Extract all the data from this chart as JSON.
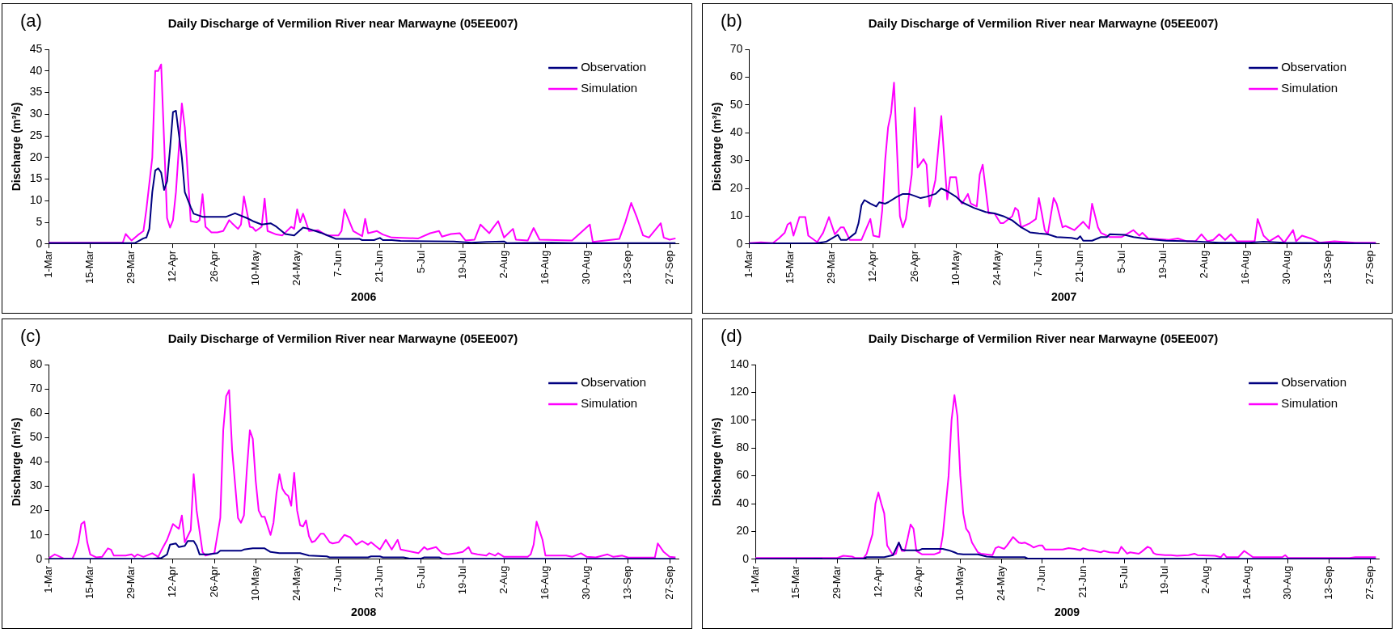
{
  "chart_data": [
    {
      "type": "line",
      "title": "Daily Discharge of Vermilion River near Marwayne (05EE007)",
      "xlabel": "2006",
      "ylabel": "Discharge (m³/s)",
      "annotations": [
        "(a)"
      ],
      "legend": "top right",
      "xlim": [
        "2006-03-01",
        "2006-09-30"
      ],
      "ylim": [
        0,
        45
      ],
      "yticks": [
        0,
        5,
        10,
        15,
        20,
        25,
        30,
        35,
        40,
        45
      ],
      "xticks": [
        {
          "value": "2006-03-01",
          "label": "1-Mar"
        },
        {
          "value": "2006-03-15",
          "label": "15-Mar"
        },
        {
          "value": "2006-03-29",
          "label": "29-Mar"
        },
        {
          "value": "2006-04-12",
          "label": "12-Apr"
        },
        {
          "value": "2006-04-26",
          "label": "26-Apr"
        },
        {
          "value": "2006-05-10",
          "label": "10-May"
        },
        {
          "value": "2006-05-24",
          "label": "24-May"
        },
        {
          "value": "2006-06-07",
          "label": "7-Jun"
        },
        {
          "value": "2006-06-21",
          "label": "21-Jun"
        },
        {
          "value": "2006-07-05",
          "label": "5-Jul"
        },
        {
          "value": "2006-07-19",
          "label": "19-Jul"
        },
        {
          "value": "2006-08-02",
          "label": "2-Aug"
        },
        {
          "value": "2006-08-16",
          "label": "16-Aug"
        },
        {
          "value": "2006-08-30",
          "label": "30-Aug"
        },
        {
          "value": "2006-09-13",
          "label": "13-Sep"
        },
        {
          "value": "2006-09-27",
          "label": "27-Sep"
        }
      ],
      "series": [
        {
          "name": "Observation",
          "color": "#000080",
          "x": [
            "2006-03-01",
            "2006-03-30",
            "2006-04-02",
            "2006-04-03",
            "2006-04-04",
            "2006-04-05",
            "2006-04-06",
            "2006-04-07",
            "2006-04-08",
            "2006-04-09",
            "2006-04-10",
            "2006-04-11",
            "2006-04-12",
            "2006-04-13",
            "2006-04-15",
            "2006-04-16",
            "2006-04-18",
            "2006-04-19",
            "2006-04-22",
            "2006-04-30",
            "2006-05-03",
            "2006-05-07",
            "2006-05-09",
            "2006-05-12",
            "2006-05-15",
            "2006-05-17",
            "2006-05-20",
            "2006-05-23",
            "2006-05-26",
            "2006-05-28",
            "2006-06-01",
            "2006-06-04",
            "2006-06-06",
            "2006-06-14",
            "2006-06-15",
            "2006-06-19",
            "2006-06-21",
            "2006-06-22",
            "2006-06-25",
            "2006-06-28",
            "2006-07-16",
            "2006-07-22",
            "2006-07-27",
            "2006-08-02",
            "2006-08-03",
            "2006-08-18",
            "2006-08-25",
            "2006-09-29"
          ],
          "values": [
            0.2,
            0.2,
            1.3,
            1.5,
            3.5,
            12,
            17,
            17.5,
            16.5,
            12.5,
            14.5,
            22,
            30.5,
            30.8,
            20,
            12,
            8.5,
            7,
            6.3,
            6.3,
            7.1,
            6,
            5.3,
            4.5,
            4.8,
            4,
            2.3,
            2,
            3.8,
            3.5,
            2.6,
            1.8,
            1.2,
            1.2,
            0.9,
            0.9,
            1.4,
            0.9,
            0.9,
            0.7,
            0.6,
            0.3,
            0.5,
            0.6,
            0.2,
            0.3,
            0.2,
            0.2
          ]
        },
        {
          "name": "Simulation",
          "color": "#ff00ff",
          "x": [
            "2006-03-01",
            "2006-03-26",
            "2006-03-27",
            "2006-03-29",
            "2006-03-31",
            "2006-04-02",
            "2006-04-03",
            "2006-04-05",
            "2006-04-06",
            "2006-04-07",
            "2006-04-08",
            "2006-04-10",
            "2006-04-11",
            "2006-04-12",
            "2006-04-13",
            "2006-04-15",
            "2006-04-16",
            "2006-04-18",
            "2006-04-20",
            "2006-04-21",
            "2006-04-22",
            "2006-04-23",
            "2006-04-25",
            "2006-04-27",
            "2006-04-29",
            "2006-05-01",
            "2006-05-02",
            "2006-05-04",
            "2006-05-05",
            "2006-05-06",
            "2006-05-08",
            "2006-05-09",
            "2006-05-10",
            "2006-05-12",
            "2006-05-13",
            "2006-05-14",
            "2006-05-17",
            "2006-05-19",
            "2006-05-22",
            "2006-05-23",
            "2006-05-24",
            "2006-05-25",
            "2006-05-26",
            "2006-05-28",
            "2006-05-31",
            "2006-06-03",
            "2006-06-07",
            "2006-06-08",
            "2006-06-09",
            "2006-06-12",
            "2006-06-15",
            "2006-06-16",
            "2006-06-17",
            "2006-06-20",
            "2006-06-22",
            "2006-06-25",
            "2006-07-04",
            "2006-07-08",
            "2006-07-11",
            "2006-07-12",
            "2006-07-15",
            "2006-07-18",
            "2006-07-20",
            "2006-07-23",
            "2006-07-25",
            "2006-07-28",
            "2006-07-29",
            "2006-07-31",
            "2006-08-02",
            "2006-08-05",
            "2006-08-06",
            "2006-08-10",
            "2006-08-12",
            "2006-08-14",
            "2006-08-25",
            "2006-08-31",
            "2006-09-01",
            "2006-09-10",
            "2006-09-12",
            "2006-09-14",
            "2006-09-16",
            "2006-09-18",
            "2006-09-20",
            "2006-09-24",
            "2006-09-25",
            "2006-09-27",
            "2006-09-29"
          ],
          "values": [
            0.3,
            0.3,
            2.3,
            0.8,
            2,
            3,
            8,
            20,
            40,
            40,
            41.5,
            6,
            3.8,
            5.5,
            12,
            32.5,
            27,
            5.3,
            5,
            5.5,
            11.5,
            4,
            2.7,
            2.7,
            3,
            5.5,
            4.8,
            3.5,
            4.5,
            11,
            4,
            3.8,
            3,
            4,
            10.5,
            3,
            2.2,
            2,
            4,
            3.5,
            8,
            5,
            7,
            3,
            3.2,
            2,
            2,
            3,
            8,
            3,
            1.8,
            5.8,
            2.5,
            3,
            2.2,
            1.5,
            1.3,
            2.5,
            3,
            1.7,
            2.3,
            2.5,
            0.8,
            1,
            4.5,
            2.5,
            3.5,
            5.3,
            1.5,
            3.5,
            1,
            0.8,
            3.7,
            1,
            0.8,
            4.5,
            0.5,
            1.2,
            5,
            9.5,
            6,
            2,
            1.5,
            4.8,
            1.5,
            1,
            1.3
          ]
        }
      ]
    },
    {
      "type": "line",
      "title": "Daily Discharge of Vermilion River near Marwayne (05EE007)",
      "xlabel": "2007",
      "ylabel": "Discharge (m³/s)",
      "annotations": [
        "(b)"
      ],
      "legend": "top right",
      "xlim": [
        "2007-03-01",
        "2007-09-30"
      ],
      "ylim": [
        0,
        70
      ],
      "yticks": [
        0,
        10,
        20,
        30,
        40,
        50,
        60,
        70
      ],
      "xticks": [
        {
          "value": "2007-03-01",
          "label": "1-Mar"
        },
        {
          "value": "2007-03-15",
          "label": "15-Mar"
        },
        {
          "value": "2007-03-29",
          "label": "29-Mar"
        },
        {
          "value": "2007-04-12",
          "label": "12-Apr"
        },
        {
          "value": "2007-04-26",
          "label": "26-Apr"
        },
        {
          "value": "2007-05-10",
          "label": "10-May"
        },
        {
          "value": "2007-05-24",
          "label": "24-May"
        },
        {
          "value": "2007-06-07",
          "label": "7-Jun"
        },
        {
          "value": "2007-06-21",
          "label": "21-Jun"
        },
        {
          "value": "2007-07-05",
          "label": "5-Jul"
        },
        {
          "value": "2007-07-19",
          "label": "19-Jul"
        },
        {
          "value": "2007-08-02",
          "label": "2-Aug"
        },
        {
          "value": "2007-08-16",
          "label": "16-Aug"
        },
        {
          "value": "2007-08-30",
          "label": "30-Aug"
        },
        {
          "value": "2007-09-13",
          "label": "13-Sep"
        },
        {
          "value": "2007-09-27",
          "label": "27-Sep"
        }
      ],
      "series": [
        {
          "name": "Observation",
          "color": "#000080",
          "x": [
            "2007-03-01",
            "2007-03-24",
            "2007-03-27",
            "2007-03-29",
            "2007-03-31",
            "2007-04-01",
            "2007-04-03",
            "2007-04-06",
            "2007-04-07",
            "2007-04-08",
            "2007-04-09",
            "2007-04-11",
            "2007-04-13",
            "2007-04-14",
            "2007-04-16",
            "2007-04-17",
            "2007-04-20",
            "2007-04-22",
            "2007-04-24",
            "2007-04-26",
            "2007-04-28",
            "2007-04-30",
            "2007-05-03",
            "2007-05-05",
            "2007-05-07",
            "2007-05-10",
            "2007-05-12",
            "2007-05-16",
            "2007-05-20",
            "2007-05-23",
            "2007-05-26",
            "2007-05-29",
            "2007-06-01",
            "2007-06-04",
            "2007-06-07",
            "2007-06-10",
            "2007-06-13",
            "2007-06-18",
            "2007-06-20",
            "2007-06-21",
            "2007-06-22",
            "2007-06-25",
            "2007-06-28",
            "2007-06-30",
            "2007-07-01",
            "2007-07-06",
            "2007-07-09",
            "2007-07-14",
            "2007-07-20",
            "2007-07-29",
            "2007-08-07",
            "2007-08-17",
            "2007-08-22",
            "2007-08-29",
            "2007-09-13",
            "2007-09-29"
          ],
          "values": [
            0.2,
            0.3,
            0.8,
            2,
            3.3,
            1.5,
            1.5,
            4,
            7.5,
            14,
            15.8,
            14.5,
            13.5,
            15,
            14.5,
            15,
            17,
            18,
            18,
            17.3,
            16.5,
            17,
            18,
            20,
            19,
            17,
            15,
            13,
            11.5,
            11,
            10,
            8.5,
            6,
            4.2,
            3.8,
            3.5,
            2.5,
            2.2,
            1.8,
            2.8,
            1.2,
            1.2,
            2.5,
            2.5,
            3.5,
            3.3,
            2.5,
            1.8,
            1.2,
            1,
            0.5,
            0.5,
            0.8,
            0.5,
            0.3,
            0.2
          ]
        },
        {
          "name": "Simulation",
          "color": "#ff00ff",
          "x": [
            "2007-03-01",
            "2007-03-05",
            "2007-03-09",
            "2007-03-11",
            "2007-03-13",
            "2007-03-14",
            "2007-03-15",
            "2007-03-16",
            "2007-03-18",
            "2007-03-20",
            "2007-03-21",
            "2007-03-24",
            "2007-03-26",
            "2007-03-28",
            "2007-03-30",
            "2007-04-01",
            "2007-04-02",
            "2007-04-04",
            "2007-04-08",
            "2007-04-11",
            "2007-04-12",
            "2007-04-14",
            "2007-04-15",
            "2007-04-16",
            "2007-04-17",
            "2007-04-18",
            "2007-04-19",
            "2007-04-21",
            "2007-04-22",
            "2007-04-23",
            "2007-04-25",
            "2007-04-26",
            "2007-04-27",
            "2007-04-28",
            "2007-04-29",
            "2007-04-30",
            "2007-05-01",
            "2007-05-03",
            "2007-05-05",
            "2007-05-07",
            "2007-05-08",
            "2007-05-10",
            "2007-05-11",
            "2007-05-12",
            "2007-05-14",
            "2007-05-15",
            "2007-05-17",
            "2007-05-18",
            "2007-05-19",
            "2007-05-21",
            "2007-05-23",
            "2007-05-25",
            "2007-05-26",
            "2007-05-29",
            "2007-05-30",
            "2007-05-31",
            "2007-06-01",
            "2007-06-04",
            "2007-06-06",
            "2007-06-07",
            "2007-06-08",
            "2007-06-09",
            "2007-06-10",
            "2007-06-12",
            "2007-06-13",
            "2007-06-15",
            "2007-06-16",
            "2007-06-19",
            "2007-06-22",
            "2007-06-24",
            "2007-06-25",
            "2007-06-27",
            "2007-06-28",
            "2007-07-01",
            "2007-07-05",
            "2007-07-09",
            "2007-07-11",
            "2007-07-12",
            "2007-07-14",
            "2007-07-21",
            "2007-07-24",
            "2007-07-27",
            "2007-07-30",
            "2007-08-01",
            "2007-08-03",
            "2007-08-05",
            "2007-08-07",
            "2007-08-09",
            "2007-08-11",
            "2007-08-13",
            "2007-08-19",
            "2007-08-20",
            "2007-08-22",
            "2007-08-24",
            "2007-08-27",
            "2007-08-29",
            "2007-09-01",
            "2007-09-02",
            "2007-09-04",
            "2007-09-07",
            "2007-09-10",
            "2007-09-15",
            "2007-09-22",
            "2007-09-29"
          ],
          "values": [
            0.3,
            0.6,
            0.3,
            2,
            4,
            7,
            7.7,
            3,
            9.7,
            9.7,
            3,
            0.7,
            4,
            9.7,
            3.5,
            6,
            6,
            1.5,
            1.5,
            9,
            3,
            2.5,
            12,
            30,
            42,
            47,
            58,
            10,
            6,
            9,
            25,
            49,
            27.5,
            29,
            30.5,
            28.5,
            13.5,
            23,
            46,
            16,
            24,
            24,
            16,
            14.5,
            18,
            14.5,
            13.5,
            25,
            28.5,
            11,
            11,
            7.5,
            7.5,
            10,
            13,
            12,
            6,
            7.5,
            9,
            16.5,
            11,
            5,
            3.5,
            16.5,
            14.5,
            6,
            6.5,
            5,
            8,
            5.5,
            14.5,
            6,
            4,
            2.5,
            2.5,
            5,
            3,
            4,
            2,
            1.5,
            2,
            1,
            1,
            3.5,
            1,
            1.5,
            3.5,
            1.5,
            3.5,
            1,
            1,
            9,
            3,
            1,
            3,
            0.5,
            5,
            1,
            3,
            2,
            0.5,
            1,
            0.5,
            0.5
          ]
        }
      ]
    },
    {
      "type": "line",
      "title": "Daily Discharge of Vermilion River near Marwayne (05EE007)",
      "xlabel": "2008",
      "ylabel": "Discharge (m³/s)",
      "annotations": [
        "(c)"
      ],
      "legend": "top right",
      "xlim": [
        "2008-03-01",
        "2008-09-30"
      ],
      "ylim": [
        0,
        80
      ],
      "yticks": [
        0,
        10,
        20,
        30,
        40,
        50,
        60,
        70,
        80
      ],
      "xticks": [
        {
          "value": "2008-03-01",
          "label": "1-Mar"
        },
        {
          "value": "2008-03-15",
          "label": "15-Mar"
        },
        {
          "value": "2008-03-29",
          "label": "29-Mar"
        },
        {
          "value": "2008-04-12",
          "label": "12-Apr"
        },
        {
          "value": "2008-04-26",
          "label": "26-Apr"
        },
        {
          "value": "2008-05-10",
          "label": "10-May"
        },
        {
          "value": "2008-05-24",
          "label": "24-May"
        },
        {
          "value": "2008-06-07",
          "label": "7-Jun"
        },
        {
          "value": "2008-06-21",
          "label": "21-Jun"
        },
        {
          "value": "2008-07-05",
          "label": "5-Jul"
        },
        {
          "value": "2008-07-19",
          "label": "19-Jul"
        },
        {
          "value": "2008-08-02",
          "label": "2-Aug"
        },
        {
          "value": "2008-08-16",
          "label": "16-Aug"
        },
        {
          "value": "2008-08-30",
          "label": "30-Aug"
        },
        {
          "value": "2008-09-13",
          "label": "13-Sep"
        },
        {
          "value": "2008-09-27",
          "label": "27-Sep"
        }
      ],
      "series": [
        {
          "name": "Observation",
          "color": "#000080",
          "x": [
            "2008-03-01",
            "2008-04-05",
            "2008-04-08",
            "2008-04-10",
            "2008-04-11",
            "2008-04-13",
            "2008-04-14",
            "2008-04-16",
            "2008-04-17",
            "2008-04-19",
            "2008-04-20",
            "2008-04-21",
            "2008-04-24",
            "2008-04-27",
            "2008-04-28",
            "2008-05-05",
            "2008-05-06",
            "2008-05-09",
            "2008-05-13",
            "2008-05-15",
            "2008-05-18",
            "2008-05-25",
            "2008-05-28",
            "2008-06-03",
            "2008-06-04",
            "2008-06-17",
            "2008-06-18",
            "2008-06-21",
            "2008-06-22",
            "2008-06-29",
            "2008-07-01",
            "2008-07-05",
            "2008-07-06",
            "2008-07-11",
            "2008-07-12",
            "2008-09-29"
          ],
          "values": [
            0.2,
            0.2,
            0.5,
            2,
            6,
            6.5,
            5,
            5.5,
            7.5,
            7.5,
            5.5,
            2,
            2,
            2.5,
            3.5,
            3.5,
            4,
            4.5,
            4.5,
            3,
            2.5,
            2.5,
            1.5,
            1.2,
            0.8,
            0.8,
            1.2,
            1.2,
            0.8,
            0.8,
            0.3,
            0.3,
            0.8,
            0.8,
            0.3,
            0.2
          ]
        },
        {
          "name": "Simulation",
          "color": "#ff00ff",
          "x": [
            "2008-03-01",
            "2008-03-03",
            "2008-03-04",
            "2008-03-06",
            "2008-03-09",
            "2008-03-10",
            "2008-03-11",
            "2008-03-12",
            "2008-03-13",
            "2008-03-14",
            "2008-03-15",
            "2008-03-17",
            "2008-03-19",
            "2008-03-21",
            "2008-03-22",
            "2008-03-23",
            "2008-03-27",
            "2008-03-29",
            "2008-03-30",
            "2008-03-31",
            "2008-04-02",
            "2008-04-05",
            "2008-04-07",
            "2008-04-08",
            "2008-04-10",
            "2008-04-12",
            "2008-04-14",
            "2008-04-15",
            "2008-04-16",
            "2008-04-18",
            "2008-04-19",
            "2008-04-20",
            "2008-04-22",
            "2008-04-23",
            "2008-04-26",
            "2008-04-28",
            "2008-04-29",
            "2008-04-30",
            "2008-05-01",
            "2008-05-02",
            "2008-05-04",
            "2008-05-05",
            "2008-05-06",
            "2008-05-07",
            "2008-05-08",
            "2008-05-09",
            "2008-05-10",
            "2008-05-11",
            "2008-05-12",
            "2008-05-13",
            "2008-05-15",
            "2008-05-16",
            "2008-05-17",
            "2008-05-18",
            "2008-05-19",
            "2008-05-20",
            "2008-05-21",
            "2008-05-22",
            "2008-05-23",
            "2008-05-24",
            "2008-05-25",
            "2008-05-26",
            "2008-05-27",
            "2008-05-28",
            "2008-05-29",
            "2008-05-30",
            "2008-06-01",
            "2008-06-02",
            "2008-06-04",
            "2008-06-05",
            "2008-06-07",
            "2008-06-09",
            "2008-06-11",
            "2008-06-13",
            "2008-06-15",
            "2008-06-17",
            "2008-06-18",
            "2008-06-20",
            "2008-06-21",
            "2008-06-23",
            "2008-06-25",
            "2008-06-27",
            "2008-06-28",
            "2008-07-02",
            "2008-07-04",
            "2008-07-06",
            "2008-07-07",
            "2008-07-10",
            "2008-07-12",
            "2008-07-14",
            "2008-07-17",
            "2008-07-19",
            "2008-07-21",
            "2008-07-22",
            "2008-07-24",
            "2008-07-27",
            "2008-07-28",
            "2008-07-30",
            "2008-07-31",
            "2008-08-02",
            "2008-08-10",
            "2008-08-11",
            "2008-08-12",
            "2008-08-13",
            "2008-08-15",
            "2008-08-16",
            "2008-08-23",
            "2008-08-25",
            "2008-08-28",
            "2008-08-30",
            "2008-09-02",
            "2008-09-06",
            "2008-09-08",
            "2008-09-11",
            "2008-09-13",
            "2008-09-22",
            "2008-09-23",
            "2008-09-25",
            "2008-09-27",
            "2008-09-29"
          ],
          "values": [
            0.5,
            2,
            1.5,
            0.3,
            0.3,
            3,
            7,
            14.5,
            15.5,
            7,
            2,
            0.8,
            1,
            4.5,
            4,
            1.5,
            1.5,
            2,
            1,
            2,
            1,
            2.5,
            1,
            3.5,
            8,
            14.5,
            12.5,
            18,
            7,
            12,
            35,
            20,
            3,
            1.5,
            2.5,
            17,
            53,
            67,
            69.5,
            45,
            17,
            15,
            18,
            37,
            53,
            49.5,
            32,
            20,
            17.5,
            17.5,
            10,
            15,
            27,
            35,
            29,
            27,
            26,
            22,
            35.5,
            20,
            14,
            13.5,
            16,
            9.5,
            7,
            7.5,
            10.5,
            10.5,
            7,
            6.5,
            7,
            10,
            9,
            6,
            7.5,
            6,
            7,
            5,
            4,
            8,
            4,
            8,
            4,
            3,
            2.5,
            5,
            4,
            5,
            2.5,
            2,
            2.5,
            3,
            5,
            2.5,
            2,
            1.5,
            2.5,
            1.5,
            2.5,
            1,
            1,
            2,
            6,
            15.5,
            8,
            1.5,
            1.5,
            1,
            2.5,
            1,
            0.8,
            2,
            1,
            1.5,
            0.7,
            0.7,
            6.5,
            3,
            1,
            0.8
          ]
        }
      ]
    },
    {
      "type": "line",
      "title": "Daily Discharge of Vermilion River near Marwayne (05EE007)",
      "xlabel": "2009",
      "ylabel": "Discharge (m³/s)",
      "annotations": [
        "(d)"
      ],
      "legend": "top right",
      "xlim": [
        "2009-03-01",
        "2009-09-30"
      ],
      "ylim": [
        0,
        140
      ],
      "yticks": [
        0,
        20,
        40,
        60,
        80,
        100,
        120,
        140
      ],
      "xticks": [
        {
          "value": "2009-03-01",
          "label": "1-Mar"
        },
        {
          "value": "2009-03-15",
          "label": "15-Mar"
        },
        {
          "value": "2009-03-29",
          "label": "29-Mar"
        },
        {
          "value": "2009-04-12",
          "label": "12-Apr"
        },
        {
          "value": "2009-04-26",
          "label": "26-Apr"
        },
        {
          "value": "2009-05-10",
          "label": "10-May"
        },
        {
          "value": "2009-05-24",
          "label": "24-May"
        },
        {
          "value": "2009-06-07",
          "label": "7-Jun"
        },
        {
          "value": "2009-06-21",
          "label": "21-Jun"
        },
        {
          "value": "2009-07-05",
          "label": "5-Jul"
        },
        {
          "value": "2009-07-19",
          "label": "19-Jul"
        },
        {
          "value": "2009-08-02",
          "label": "2-Aug"
        },
        {
          "value": "2009-08-16",
          "label": "16-Aug"
        },
        {
          "value": "2009-08-30",
          "label": "30-Aug"
        },
        {
          "value": "2009-09-13",
          "label": "13-Sep"
        },
        {
          "value": "2009-09-27",
          "label": "27-Sep"
        }
      ],
      "series": [
        {
          "name": "Observation",
          "color": "#000080",
          "x": [
            "2009-03-01",
            "2009-04-07",
            "2009-04-08",
            "2009-04-14",
            "2009-04-17",
            "2009-04-19",
            "2009-04-20",
            "2009-04-21",
            "2009-04-26",
            "2009-04-27",
            "2009-05-04",
            "2009-05-06",
            "2009-05-08",
            "2009-05-09",
            "2009-05-11",
            "2009-05-16",
            "2009-05-19",
            "2009-05-22",
            "2009-06-01",
            "2009-06-02",
            "2009-06-22",
            "2009-09-29"
          ],
          "values": [
            0.3,
            0.5,
            1.5,
            1.5,
            3,
            12,
            7,
            6.5,
            6.5,
            7.5,
            7.5,
            6.5,
            5,
            4,
            3.5,
            3.5,
            2,
            1.5,
            1.5,
            0.5,
            0.5,
            0.3
          ]
        },
        {
          "name": "Simulation",
          "color": "#ff00ff",
          "x": [
            "2009-03-01",
            "2009-03-29",
            "2009-03-31",
            "2009-04-03",
            "2009-04-04",
            "2009-04-07",
            "2009-04-08",
            "2009-04-10",
            "2009-04-11",
            "2009-04-12",
            "2009-04-13",
            "2009-04-14",
            "2009-04-15",
            "2009-04-17",
            "2009-04-18",
            "2009-04-19",
            "2009-04-20",
            "2009-04-21",
            "2009-04-22",
            "2009-04-23",
            "2009-04-24",
            "2009-04-25",
            "2009-04-27",
            "2009-05-01",
            "2009-05-03",
            "2009-05-04",
            "2009-05-06",
            "2009-05-07",
            "2009-05-08",
            "2009-05-09",
            "2009-05-10",
            "2009-05-11",
            "2009-05-12",
            "2009-05-13",
            "2009-05-14",
            "2009-05-16",
            "2009-05-17",
            "2009-05-21",
            "2009-05-22",
            "2009-05-23",
            "2009-05-25",
            "2009-05-26",
            "2009-05-28",
            "2009-05-30",
            "2009-05-31",
            "2009-06-01",
            "2009-06-03",
            "2009-06-04",
            "2009-06-06",
            "2009-06-07",
            "2009-06-08",
            "2009-06-14",
            "2009-06-16",
            "2009-06-18",
            "2009-06-20",
            "2009-06-21",
            "2009-06-23",
            "2009-06-24",
            "2009-06-27",
            "2009-06-28",
            "2009-06-30",
            "2009-07-03",
            "2009-07-04",
            "2009-07-06",
            "2009-07-07",
            "2009-07-10",
            "2009-07-11",
            "2009-07-13",
            "2009-07-14",
            "2009-07-15",
            "2009-07-16",
            "2009-07-19",
            "2009-07-21",
            "2009-07-23",
            "2009-07-27",
            "2009-07-29",
            "2009-07-30",
            "2009-08-05",
            "2009-08-07",
            "2009-08-08",
            "2009-08-09",
            "2009-08-13",
            "2009-08-15",
            "2009-08-18",
            "2009-08-28",
            "2009-08-29",
            "2009-08-30",
            "2009-09-17",
            "2009-09-20",
            "2009-09-22",
            "2009-09-29"
          ],
          "values": [
            1,
            1,
            2.5,
            2,
            1,
            1,
            4,
            18,
            40,
            48,
            40,
            33,
            10,
            3,
            4,
            12,
            6,
            6,
            15,
            25,
            22,
            6,
            3.5,
            3.5,
            5,
            17,
            60,
            100,
            118,
            103,
            60,
            33,
            22,
            19,
            12,
            5,
            4,
            3,
            8,
            9,
            7.5,
            10,
            16,
            12,
            11.5,
            12,
            10,
            8.5,
            10,
            10,
            7,
            7,
            8,
            7.5,
            6.5,
            8,
            6.5,
            6.5,
            5,
            6,
            5,
            4.5,
            9,
            4,
            5,
            4,
            5.5,
            9,
            8,
            4.5,
            3.5,
            3,
            3,
            2.5,
            3,
            4,
            3,
            2.5,
            1.5,
            4,
            1.5,
            1.5,
            6,
            1.5,
            1.5,
            3,
            1,
            1,
            1,
            1.5,
            1.5
          ]
        }
      ]
    }
  ]
}
